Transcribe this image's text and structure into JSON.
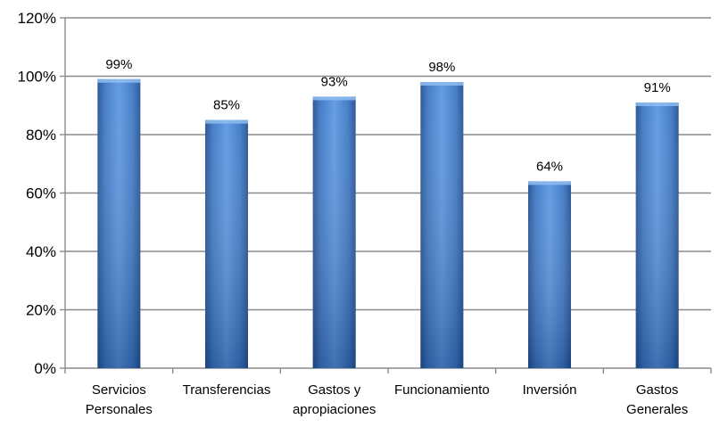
{
  "chart_data": {
    "type": "bar",
    "categories": [
      [
        "Servicios",
        "Personales"
      ],
      [
        "Transferencias"
      ],
      [
        "Gastos y",
        "apropiaciones"
      ],
      [
        "Funcionamiento"
      ],
      [
        "Inversión"
      ],
      [
        "Gastos",
        "Generales"
      ]
    ],
    "values": [
      99,
      85,
      93,
      98,
      64,
      91
    ],
    "data_labels": [
      "99%",
      "85%",
      "93%",
      "98%",
      "64%",
      "91%"
    ],
    "ylim": [
      0,
      120
    ],
    "yticks": [
      0,
      20,
      40,
      60,
      80,
      100,
      120
    ],
    "ytick_labels": [
      "0%",
      "20%",
      "40%",
      "60%",
      "80%",
      "100%",
      "120%"
    ],
    "grid": true,
    "legend": "none",
    "colors": {
      "bar_light": "#6aa2e6",
      "bar_mid": "#3f7fd0",
      "bar_dark": "#234f8f",
      "bar_top": "#8fbdf0",
      "grid": "#8a8a8a"
    }
  }
}
